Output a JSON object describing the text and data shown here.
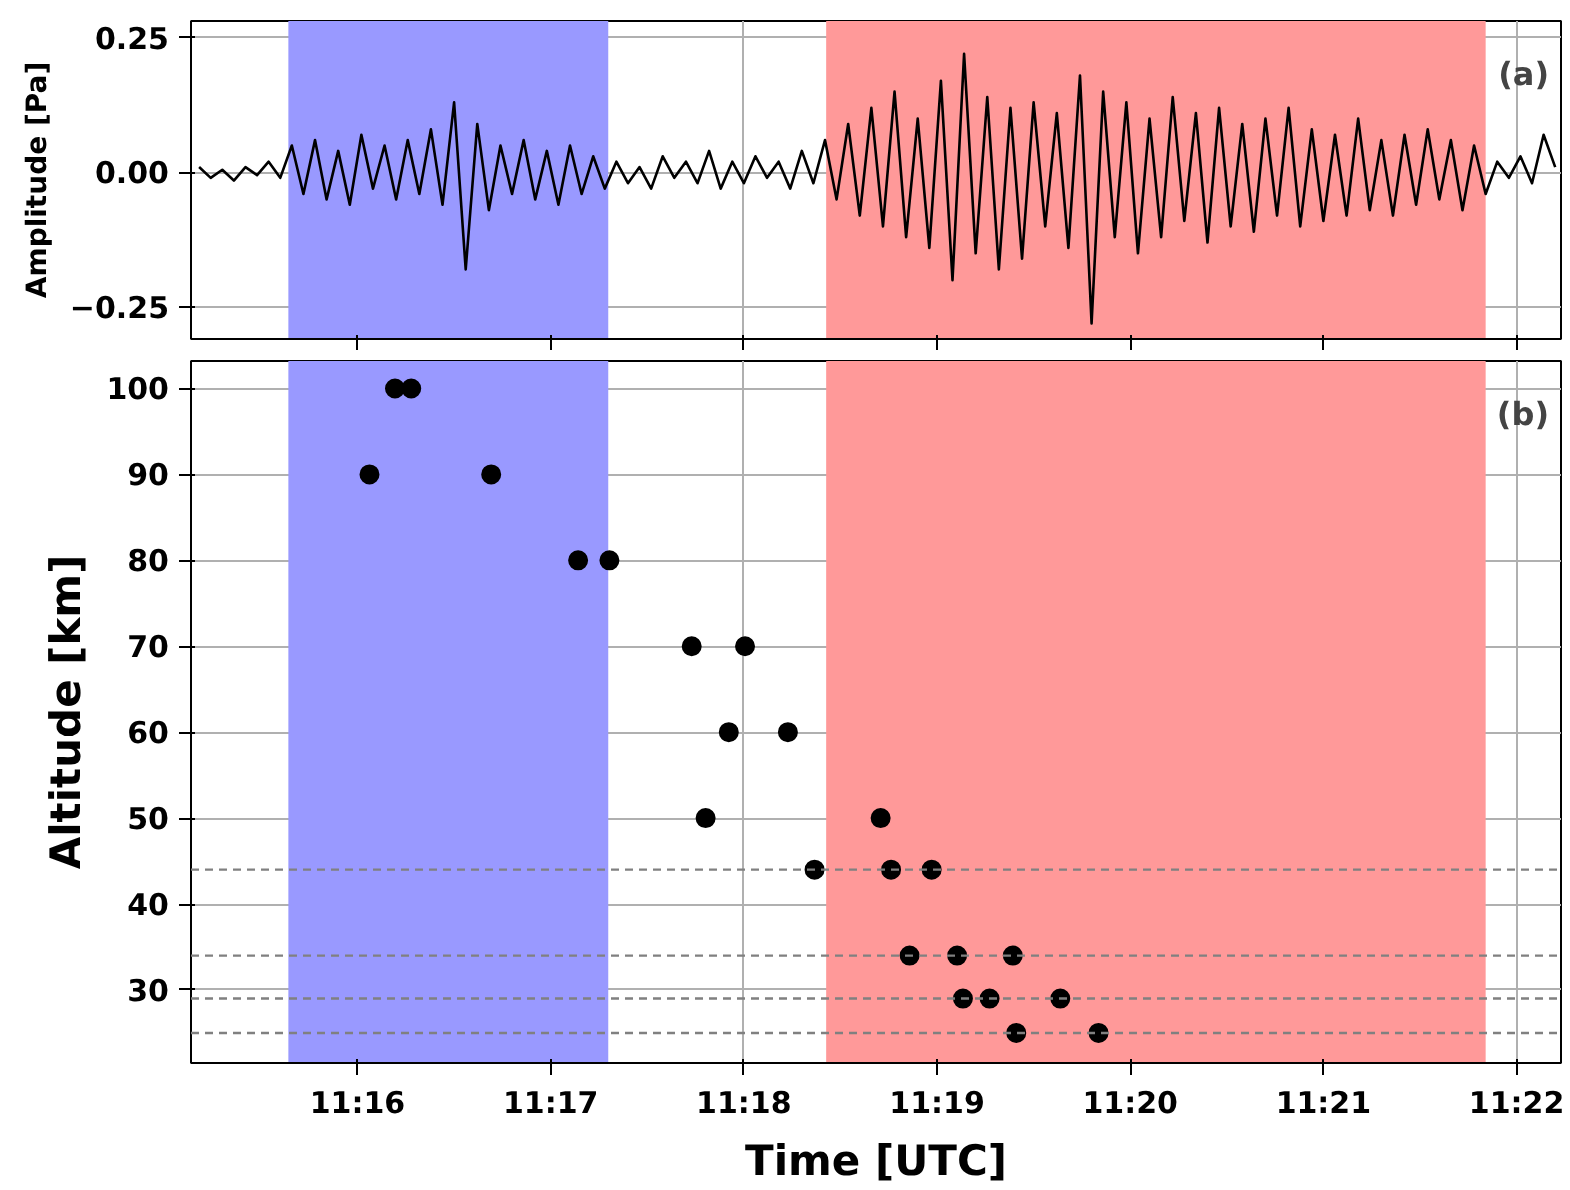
{
  "chart_data": [
    {
      "type": "line",
      "ylabel": "Amplitude [Pa]",
      "annotations": [
        "(a)"
      ],
      "xlim": [
        11.2523,
        11.3705
      ],
      "ylim": [
        -0.309,
        0.281
      ],
      "xticks": [
        {
          "value": 11.266667,
          "label": null
        },
        {
          "value": 11.283333,
          "label": null
        },
        {
          "value": 11.3,
          "label": null
        },
        {
          "value": 11.316667,
          "label": null
        },
        {
          "value": 11.333333,
          "label": null
        },
        {
          "value": 11.35,
          "label": null
        },
        {
          "value": 11.366667,
          "label": null
        }
      ],
      "yticks": [
        {
          "value": 0.25,
          "label": "0.25"
        },
        {
          "value": 0,
          "label": "0.00"
        },
        {
          "value": -0.25,
          "label": "−0.25"
        }
      ],
      "tick_labels": "y",
      "grid": true,
      "bands": [
        {
          "axis": "x",
          "from": 11.2607,
          "to": 11.2883,
          "color": "#9999ff"
        },
        {
          "axis": "x",
          "from": 11.3071,
          "to": 11.364,
          "color": "#ff9999"
        }
      ],
      "series": [
        {
          "color": "#000000",
          "x": [
            11.253,
            11.254,
            11.255,
            11.256,
            11.257,
            11.258,
            11.259,
            11.26,
            11.261,
            11.262,
            11.263,
            11.264,
            11.265,
            11.266,
            11.267,
            11.268,
            11.269,
            11.27,
            11.271,
            11.272,
            11.273,
            11.274,
            11.275,
            11.276,
            11.277,
            11.278,
            11.279,
            11.28,
            11.281,
            11.282,
            11.283,
            11.284,
            11.285,
            11.286,
            11.287,
            11.288,
            11.289,
            11.29,
            11.291,
            11.292,
            11.293,
            11.294,
            11.295,
            11.296,
            11.297,
            11.298,
            11.299,
            11.3,
            11.301,
            11.302,
            11.303,
            11.304,
            11.305,
            11.306,
            11.307,
            11.308,
            11.309,
            11.31,
            11.311,
            11.312,
            11.313,
            11.314,
            11.315,
            11.316,
            11.317,
            11.318,
            11.319,
            11.32,
            11.321,
            11.322,
            11.323,
            11.324,
            11.325,
            11.326,
            11.327,
            11.328,
            11.329,
            11.33,
            11.331,
            11.332,
            11.333,
            11.334,
            11.335,
            11.336,
            11.337,
            11.338,
            11.339,
            11.34,
            11.341,
            11.342,
            11.343,
            11.344,
            11.345,
            11.346,
            11.347,
            11.348,
            11.349,
            11.35,
            11.351,
            11.352,
            11.353,
            11.354,
            11.355,
            11.356,
            11.357,
            11.358,
            11.359,
            11.36,
            11.361,
            11.362,
            11.363,
            11.364,
            11.365,
            11.366,
            11.367,
            11.368,
            11.369,
            11.37
          ],
          "values": [
            0.01,
            -0.01,
            0.005,
            -0.015,
            0.01,
            -0.005,
            0.02,
            -0.01,
            0.05,
            -0.04,
            0.06,
            -0.05,
            0.04,
            -0.06,
            0.07,
            -0.03,
            0.05,
            -0.05,
            0.06,
            -0.04,
            0.08,
            -0.06,
            0.13,
            -0.18,
            0.09,
            -0.07,
            0.05,
            -0.04,
            0.06,
            -0.05,
            0.04,
            -0.06,
            0.05,
            -0.04,
            0.03,
            -0.03,
            0.02,
            -0.02,
            0.01,
            -0.03,
            0.03,
            -0.01,
            0.02,
            -0.02,
            0.04,
            -0.03,
            0.02,
            -0.02,
            0.03,
            -0.01,
            0.02,
            -0.03,
            0.04,
            -0.02,
            0.06,
            -0.05,
            0.09,
            -0.08,
            0.12,
            -0.1,
            0.15,
            -0.12,
            0.1,
            -0.14,
            0.17,
            -0.2,
            0.22,
            -0.15,
            0.14,
            -0.18,
            0.12,
            -0.16,
            0.13,
            -0.1,
            0.11,
            -0.14,
            0.18,
            -0.28,
            0.15,
            -0.12,
            0.13,
            -0.15,
            0.1,
            -0.12,
            0.14,
            -0.09,
            0.11,
            -0.13,
            0.12,
            -0.1,
            0.09,
            -0.11,
            0.1,
            -0.08,
            0.12,
            -0.1,
            0.08,
            -0.09,
            0.07,
            -0.08,
            0.1,
            -0.07,
            0.06,
            -0.08,
            0.07,
            -0.06,
            0.08,
            -0.05,
            0.06,
            -0.07,
            0.05,
            -0.04,
            0.02,
            -0.01,
            0.03,
            -0.02,
            0.07,
            0.01
          ]
        }
      ]
    },
    {
      "type": "scatter",
      "xlabel": "Time [UTC]",
      "ylabel": "Altitude [km]",
      "annotations": [
        "(b)"
      ],
      "xlim": [
        11.2523,
        11.3705
      ],
      "ylim": [
        21.5,
        103.2
      ],
      "xticks": [
        {
          "value": 11.266667,
          "label": "11:16"
        },
        {
          "value": 11.283333,
          "label": "11:17"
        },
        {
          "value": 11.3,
          "label": "11:18"
        },
        {
          "value": 11.316667,
          "label": "11:19"
        },
        {
          "value": 11.333333,
          "label": "11:20"
        },
        {
          "value": 11.35,
          "label": "11:21"
        },
        {
          "value": 11.366667,
          "label": "11:22"
        }
      ],
      "yticks": [
        30,
        40,
        50,
        60,
        70,
        80,
        90,
        100
      ],
      "grid": true,
      "marker": "circle",
      "bands": [
        {
          "axis": "x",
          "from": 11.2607,
          "to": 11.2883,
          "color": "#9999ff"
        },
        {
          "axis": "x",
          "from": 11.3071,
          "to": 11.364,
          "color": "#ff9999"
        }
      ],
      "ref_lines": [
        {
          "axis": "y",
          "value": 44,
          "color": "#808080",
          "line_style": "dashed"
        },
        {
          "axis": "y",
          "value": 34,
          "color": "#808080",
          "line_style": "dashed"
        },
        {
          "axis": "y",
          "value": 29,
          "color": "#808080",
          "line_style": "dashed"
        },
        {
          "axis": "y",
          "value": 25,
          "color": "#808080",
          "line_style": "dashed"
        }
      ],
      "series": [
        {
          "color": "#000000",
          "x": [
            11.2677,
            11.2699,
            11.2713,
            11.2782,
            11.2857,
            11.2884,
            11.2955,
            11.3001,
            11.2987,
            11.3038,
            11.2967,
            11.3061,
            11.3118,
            11.3127,
            11.3162,
            11.3143,
            11.3184,
            11.3232,
            11.3189,
            11.3212,
            11.3273,
            11.3235,
            11.3306
          ],
          "values": [
            90,
            100,
            100,
            90,
            80,
            80,
            70,
            70,
            60,
            60,
            50,
            44,
            50,
            44,
            44,
            34,
            34,
            34,
            29,
            29,
            29,
            25,
            25
          ]
        }
      ]
    }
  ]
}
